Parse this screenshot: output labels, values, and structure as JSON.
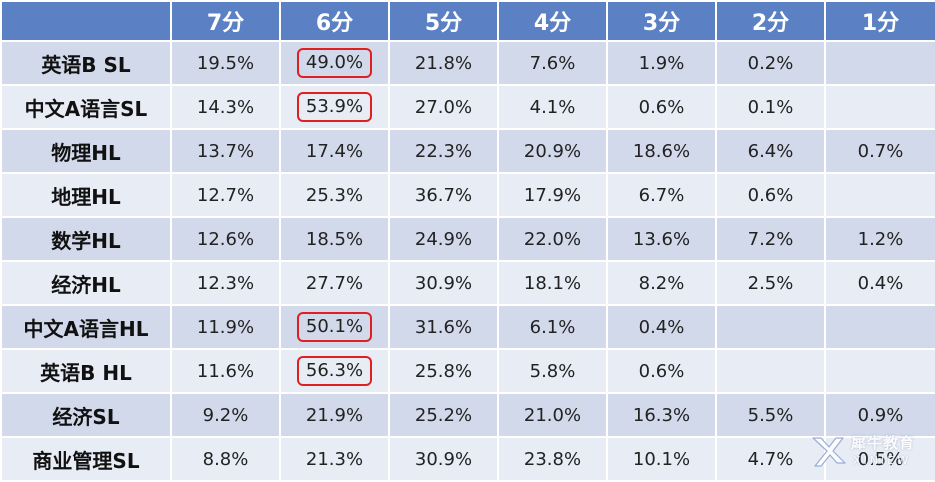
{
  "colors": {
    "header_bg": "#5b80c4",
    "row_dark": "#d1d9eb",
    "row_light": "#e8ecf5",
    "highlight_border": "#e02020"
  },
  "header": {
    "corner": "",
    "grades": [
      "7分",
      "6分",
      "5分",
      "4分",
      "3分",
      "2分",
      "1分"
    ]
  },
  "rows": [
    {
      "subject": "英语B SL",
      "cells": [
        "19.5%",
        "49.0%",
        "21.8%",
        "7.6%",
        "1.9%",
        "0.2%",
        ""
      ],
      "highlighted": [
        1
      ]
    },
    {
      "subject": "中文A语言SL",
      "cells": [
        "14.3%",
        "53.9%",
        "27.0%",
        "4.1%",
        "0.6%",
        "0.1%",
        ""
      ],
      "highlighted": [
        1
      ]
    },
    {
      "subject": "物理HL",
      "cells": [
        "13.7%",
        "17.4%",
        "22.3%",
        "20.9%",
        "18.6%",
        "6.4%",
        "0.7%"
      ],
      "highlighted": []
    },
    {
      "subject": "地理HL",
      "cells": [
        "12.7%",
        "25.3%",
        "36.7%",
        "17.9%",
        "6.7%",
        "0.6%",
        ""
      ],
      "highlighted": []
    },
    {
      "subject": "数学HL",
      "cells": [
        "12.6%",
        "18.5%",
        "24.9%",
        "22.0%",
        "13.6%",
        "7.2%",
        "1.2%"
      ],
      "highlighted": []
    },
    {
      "subject": "经济HL",
      "cells": [
        "12.3%",
        "27.7%",
        "30.9%",
        "18.1%",
        "8.2%",
        "2.5%",
        "0.4%"
      ],
      "highlighted": []
    },
    {
      "subject": "中文A语言HL",
      "cells": [
        "11.9%",
        "50.1%",
        "31.6%",
        "6.1%",
        "0.4%",
        "",
        ""
      ],
      "highlighted": [
        1
      ]
    },
    {
      "subject": "英语B HL",
      "cells": [
        "11.6%",
        "56.3%",
        "25.8%",
        "5.8%",
        "0.6%",
        "",
        ""
      ],
      "highlighted": [
        1
      ]
    },
    {
      "subject": "经济SL",
      "cells": [
        "9.2%",
        "21.9%",
        "25.2%",
        "21.0%",
        "16.3%",
        "5.5%",
        "0.9%"
      ],
      "highlighted": []
    },
    {
      "subject": "商业管理SL",
      "cells": [
        "8.8%",
        "21.3%",
        "30.9%",
        "23.8%",
        "10.1%",
        "4.7%",
        "0.5%"
      ],
      "highlighted": []
    }
  ],
  "watermark": {
    "logo_icon": "x-swoosh-logo",
    "text": "犀牛教育",
    "sub": "XINIEW"
  }
}
